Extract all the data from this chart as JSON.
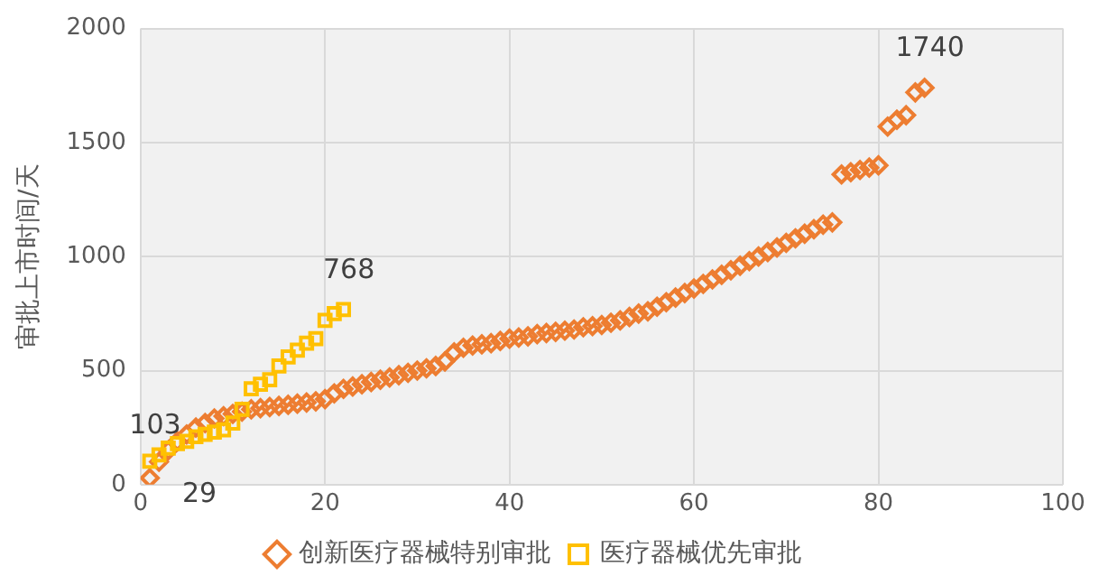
{
  "chart_data": {
    "type": "scatter",
    "ylabel": "审批上市时间/天",
    "xlim": [
      0,
      100
    ],
    "xticks": [
      0,
      20,
      40,
      60,
      80,
      100
    ],
    "ylim": [
      0,
      2000
    ],
    "yticks": [
      0,
      500,
      1000,
      1500,
      2000
    ],
    "grid": true,
    "legend": "bottom",
    "series": [
      {
        "name": "创新医疗器械特别审批",
        "color": "#ed7d31",
        "marker": "diamond",
        "x": [
          1,
          2,
          3,
          4,
          5,
          6,
          7,
          8,
          9,
          10,
          11,
          12,
          13,
          14,
          15,
          16,
          17,
          18,
          19,
          20,
          21,
          22,
          23,
          24,
          25,
          26,
          27,
          28,
          29,
          30,
          31,
          32,
          33,
          34,
          35,
          36,
          37,
          38,
          39,
          40,
          41,
          42,
          43,
          44,
          45,
          46,
          47,
          48,
          49,
          50,
          51,
          52,
          53,
          54,
          55,
          56,
          57,
          58,
          59,
          60,
          61,
          62,
          63,
          64,
          65,
          66,
          67,
          68,
          69,
          70,
          71,
          72,
          73,
          74,
          75,
          76,
          77,
          78,
          79,
          80,
          81,
          82,
          83,
          84,
          85
        ],
        "values": [
          29,
          100,
          150,
          190,
          220,
          250,
          270,
          290,
          300,
          310,
          320,
          330,
          335,
          340,
          345,
          350,
          355,
          360,
          365,
          375,
          400,
          420,
          430,
          440,
          450,
          460,
          470,
          480,
          490,
          500,
          510,
          520,
          540,
          580,
          600,
          610,
          615,
          620,
          630,
          640,
          645,
          650,
          660,
          665,
          670,
          675,
          680,
          690,
          695,
          700,
          710,
          720,
          735,
          750,
          760,
          780,
          800,
          820,
          840,
          860,
          880,
          900,
          920,
          940,
          960,
          980,
          1000,
          1020,
          1040,
          1060,
          1080,
          1100,
          1120,
          1140,
          1150,
          1360,
          1370,
          1380,
          1390,
          1400,
          1570,
          1600,
          1620,
          1720,
          1740
        ]
      },
      {
        "name": "医疗器械优先审批",
        "color": "#ffc000",
        "marker": "square",
        "x": [
          1,
          2,
          3,
          4,
          5,
          6,
          7,
          8,
          9,
          10,
          11,
          12,
          13,
          14,
          15,
          16,
          17,
          18,
          19,
          20,
          21,
          22
        ],
        "values": [
          103,
          130,
          160,
          180,
          190,
          210,
          220,
          230,
          240,
          270,
          330,
          420,
          440,
          460,
          520,
          560,
          590,
          620,
          640,
          720,
          750,
          768
        ]
      }
    ],
    "annotations": [
      {
        "text": "103",
        "x": 1,
        "y": 103
      },
      {
        "text": "29",
        "x": 1,
        "y": 29
      },
      {
        "text": "768",
        "x": 22,
        "y": 768
      },
      {
        "text": "1740",
        "x": 85,
        "y": 1740
      }
    ]
  }
}
